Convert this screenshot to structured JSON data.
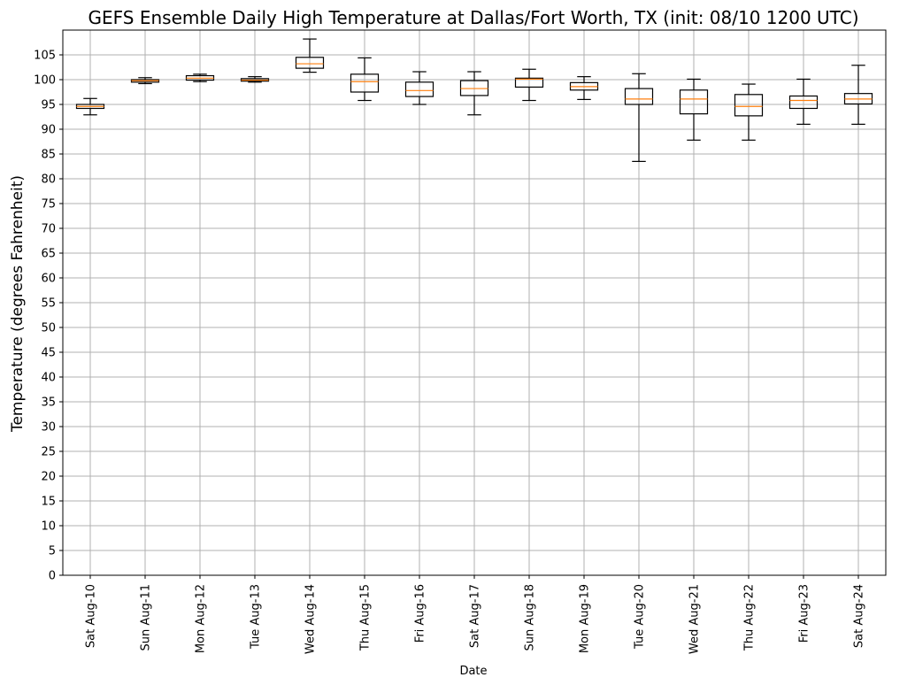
{
  "chart_data": {
    "type": "boxplot",
    "title": "GEFS Ensemble Daily High Temperature at Dallas/Fort Worth, TX (init: 08/10 1200 UTC)",
    "xlabel": "Date",
    "ylabel": "Temperature (degrees Fahrenheit)",
    "ylim": [
      0,
      110
    ],
    "yticks": [
      0,
      5,
      10,
      15,
      20,
      25,
      30,
      35,
      40,
      45,
      50,
      55,
      60,
      65,
      70,
      75,
      80,
      85,
      90,
      95,
      100,
      105
    ],
    "grid": true,
    "colors": {
      "box": "#000000",
      "median": "#ff7f0e",
      "grid": "#b0b0b0"
    },
    "categories": [
      "Sat Aug-10",
      "Sun Aug-11",
      "Mon Aug-12",
      "Tue Aug-13",
      "Wed Aug-14",
      "Thu Aug-15",
      "Fri Aug-16",
      "Sat Aug-17",
      "Sun Aug-18",
      "Mon Aug-19",
      "Tue Aug-20",
      "Wed Aug-21",
      "Thu Aug-22",
      "Fri Aug-23",
      "Sat Aug-24"
    ],
    "boxes": [
      {
        "whislo": 92.9,
        "q1": 94.2,
        "med": 94.6,
        "q3": 95.0,
        "whishi": 96.2
      },
      {
        "whislo": 99.2,
        "q1": 99.5,
        "med": 99.8,
        "q3": 100.0,
        "whishi": 100.4
      },
      {
        "whislo": 99.6,
        "q1": 99.9,
        "med": 100.3,
        "q3": 100.8,
        "whishi": 101.1
      },
      {
        "whislo": 99.5,
        "q1": 99.7,
        "med": 99.9,
        "q3": 100.2,
        "whishi": 100.6
      },
      {
        "whislo": 101.5,
        "q1": 102.3,
        "med": 103.2,
        "q3": 104.5,
        "whishi": 108.2
      },
      {
        "whislo": 95.8,
        "q1": 97.5,
        "med": 99.6,
        "q3": 101.1,
        "whishi": 104.4
      },
      {
        "whislo": 95.0,
        "q1": 96.6,
        "med": 97.8,
        "q3": 99.5,
        "whishi": 101.6
      },
      {
        "whislo": 92.9,
        "q1": 96.8,
        "med": 98.2,
        "q3": 99.8,
        "whishi": 101.6
      },
      {
        "whislo": 95.8,
        "q1": 98.5,
        "med": 100.1,
        "q3": 100.3,
        "whishi": 102.1
      },
      {
        "whislo": 96.0,
        "q1": 97.9,
        "med": 98.6,
        "q3": 99.4,
        "whishi": 100.6
      },
      {
        "whislo": 83.5,
        "q1": 95.0,
        "med": 96.1,
        "q3": 98.2,
        "whishi": 101.2
      },
      {
        "whislo": 87.8,
        "q1": 93.1,
        "med": 96.1,
        "q3": 97.9,
        "whishi": 100.1
      },
      {
        "whislo": 87.8,
        "q1": 92.7,
        "med": 94.6,
        "q3": 97.0,
        "whishi": 99.1
      },
      {
        "whislo": 91.0,
        "q1": 94.2,
        "med": 95.8,
        "q3": 96.7,
        "whishi": 100.1
      },
      {
        "whislo": 91.0,
        "q1": 95.1,
        "med": 96.1,
        "q3": 97.2,
        "whishi": 102.9
      }
    ]
  }
}
